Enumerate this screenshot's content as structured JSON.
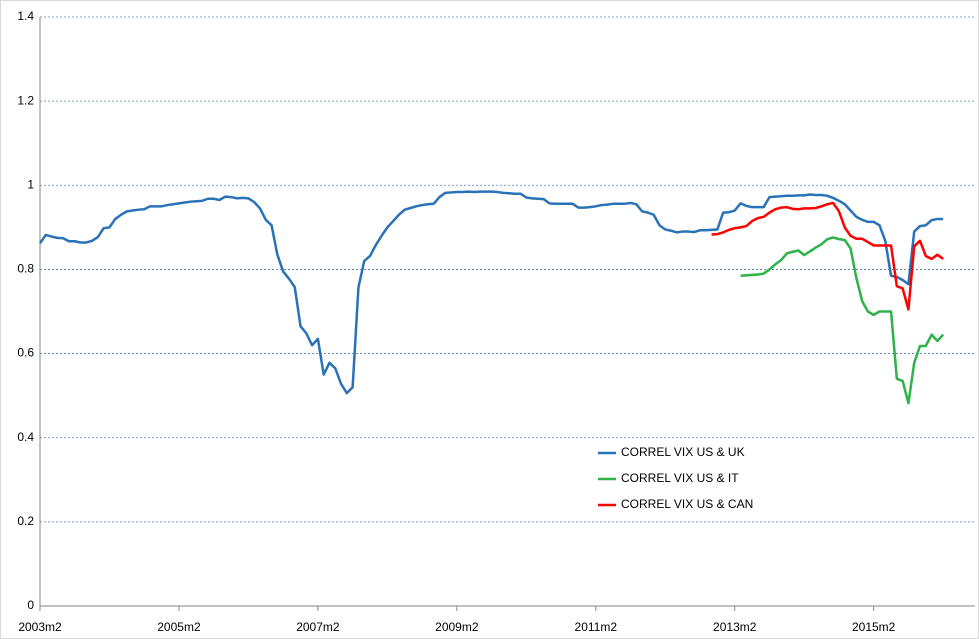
{
  "chart_data": {
    "type": "line",
    "categories": [
      "2003m2",
      null,
      null,
      null,
      null,
      null,
      null,
      null,
      null,
      null,
      null,
      null,
      null,
      null,
      null,
      null,
      null,
      null,
      null,
      null,
      null,
      null,
      null,
      null,
      "2005m2",
      null,
      null,
      null,
      null,
      null,
      null,
      null,
      null,
      null,
      null,
      null,
      null,
      null,
      null,
      null,
      null,
      null,
      null,
      null,
      null,
      null,
      null,
      null,
      "2007m2",
      null,
      null,
      null,
      null,
      null,
      null,
      null,
      null,
      null,
      null,
      null,
      null,
      null,
      null,
      null,
      null,
      null,
      null,
      null,
      null,
      null,
      null,
      null,
      "2009m2",
      null,
      null,
      null,
      null,
      null,
      null,
      null,
      null,
      null,
      null,
      null,
      null,
      null,
      null,
      null,
      null,
      null,
      null,
      null,
      null,
      null,
      null,
      null,
      "2011m2",
      null,
      null,
      null,
      null,
      null,
      null,
      null,
      null,
      null,
      null,
      null,
      null,
      null,
      null,
      null,
      null,
      null,
      null,
      null,
      null,
      null,
      null,
      null,
      "2013m2",
      null,
      null,
      null,
      null,
      null,
      null,
      null,
      null,
      null,
      null,
      null,
      null,
      null,
      null,
      null,
      null,
      null,
      null,
      null,
      null,
      null,
      null,
      null,
      "2015m2",
      null,
      null,
      null,
      null,
      null,
      null,
      null,
      null,
      null,
      null,
      null,
      null
    ],
    "series": [
      {
        "name": "CORREL VIX US & UK",
        "color": "#2a72b8",
        "values": [
          0.862,
          0.882,
          0.878,
          0.875,
          0.874,
          0.867,
          0.867,
          0.864,
          0.864,
          0.868,
          0.877,
          0.898,
          0.9,
          0.92,
          0.93,
          0.938,
          0.94,
          0.942,
          0.943,
          0.95,
          0.95,
          0.95,
          0.953,
          0.955,
          0.957,
          0.959,
          0.961,
          0.962,
          0.963,
          0.968,
          0.968,
          0.965,
          0.973,
          0.972,
          0.969,
          0.97,
          0.969,
          0.96,
          0.945,
          0.918,
          0.905,
          0.835,
          0.795,
          0.778,
          0.758,
          0.665,
          0.648,
          0.62,
          0.635,
          0.55,
          0.578,
          0.565,
          0.528,
          0.506,
          0.52,
          0.757,
          0.82,
          0.832,
          0.858,
          0.88,
          0.9,
          0.915,
          0.93,
          0.942,
          0.946,
          0.95,
          0.953,
          0.955,
          0.956,
          0.972,
          0.982,
          0.983,
          0.984,
          0.984,
          0.985,
          0.984,
          0.985,
          0.985,
          0.985,
          0.984,
          0.982,
          0.981,
          0.98,
          0.98,
          0.971,
          0.969,
          0.968,
          0.967,
          0.957,
          0.956,
          0.956,
          0.956,
          0.956,
          0.947,
          0.947,
          0.948,
          0.95,
          0.953,
          0.954,
          0.956,
          0.956,
          0.956,
          0.958,
          0.955,
          0.938,
          0.935,
          0.93,
          0.905,
          0.895,
          0.892,
          0.888,
          0.89,
          0.89,
          0.889,
          0.893,
          0.893,
          0.894,
          0.895,
          0.935,
          0.936,
          0.94,
          0.957,
          0.951,
          0.948,
          0.948,
          0.948,
          0.972,
          0.973,
          0.974,
          0.975,
          0.975,
          0.976,
          0.976,
          0.978,
          0.977,
          0.977,
          0.975,
          0.97,
          0.963,
          0.955,
          0.94,
          0.925,
          0.918,
          0.913,
          0.913,
          0.905,
          0.868,
          0.785,
          0.782,
          0.775,
          0.765,
          0.89,
          0.903,
          0.905,
          0.917,
          0.92,
          0.92
        ]
      },
      {
        "name": "CORREL VIX US & IT",
        "color": "#2db34a",
        "values": [
          null,
          null,
          null,
          null,
          null,
          null,
          null,
          null,
          null,
          null,
          null,
          null,
          null,
          null,
          null,
          null,
          null,
          null,
          null,
          null,
          null,
          null,
          null,
          null,
          null,
          null,
          null,
          null,
          null,
          null,
          null,
          null,
          null,
          null,
          null,
          null,
          null,
          null,
          null,
          null,
          null,
          null,
          null,
          null,
          null,
          null,
          null,
          null,
          null,
          null,
          null,
          null,
          null,
          null,
          null,
          null,
          null,
          null,
          null,
          null,
          null,
          null,
          null,
          null,
          null,
          null,
          null,
          null,
          null,
          null,
          null,
          null,
          null,
          null,
          null,
          null,
          null,
          null,
          null,
          null,
          null,
          null,
          null,
          null,
          null,
          null,
          null,
          null,
          null,
          null,
          null,
          null,
          null,
          null,
          null,
          null,
          null,
          null,
          null,
          null,
          null,
          null,
          null,
          null,
          null,
          null,
          null,
          null,
          null,
          null,
          null,
          null,
          null,
          null,
          null,
          null,
          null,
          null,
          null,
          null,
          null,
          0.785,
          0.786,
          0.787,
          0.788,
          0.79,
          0.8,
          0.812,
          0.822,
          0.838,
          0.842,
          0.845,
          0.834,
          0.843,
          0.852,
          0.86,
          0.872,
          0.876,
          0.872,
          0.87,
          0.85,
          0.78,
          0.725,
          0.7,
          0.692,
          0.7,
          0.7,
          0.7,
          0.54,
          0.535,
          0.482,
          0.578,
          0.618,
          0.618,
          0.645,
          0.63,
          0.645
        ]
      },
      {
        "name": "CORREL VIX US & CAN",
        "color": "#ff0000",
        "values": [
          null,
          null,
          null,
          null,
          null,
          null,
          null,
          null,
          null,
          null,
          null,
          null,
          null,
          null,
          null,
          null,
          null,
          null,
          null,
          null,
          null,
          null,
          null,
          null,
          null,
          null,
          null,
          null,
          null,
          null,
          null,
          null,
          null,
          null,
          null,
          null,
          null,
          null,
          null,
          null,
          null,
          null,
          null,
          null,
          null,
          null,
          null,
          null,
          null,
          null,
          null,
          null,
          null,
          null,
          null,
          null,
          null,
          null,
          null,
          null,
          null,
          null,
          null,
          null,
          null,
          null,
          null,
          null,
          null,
          null,
          null,
          null,
          null,
          null,
          null,
          null,
          null,
          null,
          null,
          null,
          null,
          null,
          null,
          null,
          null,
          null,
          null,
          null,
          null,
          null,
          null,
          null,
          null,
          null,
          null,
          null,
          null,
          null,
          null,
          null,
          null,
          null,
          null,
          null,
          null,
          null,
          null,
          null,
          null,
          null,
          null,
          null,
          null,
          null,
          null,
          null,
          0.883,
          0.884,
          0.888,
          0.894,
          0.898,
          0.9,
          0.903,
          0.915,
          0.922,
          0.925,
          0.935,
          0.943,
          0.947,
          0.948,
          0.944,
          0.943,
          0.945,
          0.945,
          0.946,
          0.95,
          0.955,
          0.958,
          0.938,
          0.9,
          0.88,
          0.873,
          0.873,
          0.865,
          0.857,
          0.857,
          0.857,
          0.857,
          0.76,
          0.755,
          0.705,
          0.855,
          0.868,
          0.832,
          0.825,
          0.835,
          0.825
        ]
      }
    ],
    "ylim": [
      0,
      1.4
    ],
    "yticks": [
      0,
      0.2,
      0.4,
      0.6,
      0.8,
      1,
      1.2,
      1.4
    ],
    "grid": true,
    "legend_position": "lower right"
  }
}
